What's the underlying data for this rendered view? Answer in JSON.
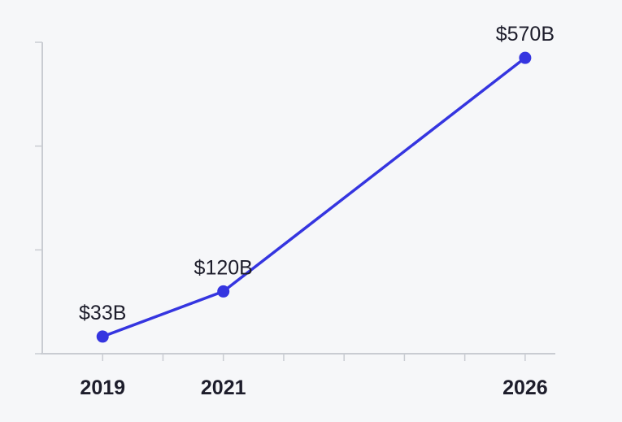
{
  "chart_data": {
    "type": "line",
    "title": "",
    "xlabel": "",
    "ylabel": "",
    "x": [
      2019,
      2021,
      2026
    ],
    "xlim": [
      2018,
      2026.5
    ],
    "x_tick_labels": [
      "2019",
      "2021",
      "2026"
    ],
    "ylim": [
      0,
      600
    ],
    "grid": false,
    "series": [
      {
        "values": [
          33,
          120,
          570
        ],
        "labels": [
          "$33B",
          "$120B",
          "$570B"
        ],
        "color": "#3535e0"
      }
    ]
  }
}
